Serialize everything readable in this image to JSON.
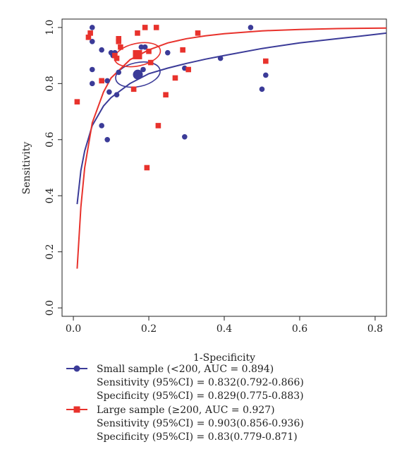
{
  "chart_data": {
    "type": "scatter",
    "xlabel": "1-Specificity",
    "ylabel": "Sensitivity",
    "xlim": [
      -0.03,
      0.83
    ],
    "ylim": [
      -0.03,
      1.03
    ],
    "x_ticks": [
      "0.0",
      "0.2",
      "0.4",
      "0.6",
      "0.8"
    ],
    "y_ticks": [
      "0.0",
      "0.2",
      "0.4",
      "0.6",
      "0.8",
      "1.0"
    ],
    "x_tick_values": [
      0,
      0.2,
      0.4,
      0.6,
      0.8
    ],
    "y_tick_values": [
      0,
      0.2,
      0.4,
      0.6,
      0.8,
      1.0
    ],
    "colors": {
      "small": "#3b3b98",
      "large": "#e8322c"
    },
    "series": [
      {
        "name": "Small sample (<200, AUC = 0.894)",
        "marker": "circle",
        "sensitivity_ci": "Sensitivity (95%CI) = 0.832(0.792-0.866)",
        "specificity_ci": "Specificity (95%CI) = 0.829(0.775-0.883)",
        "summary_point": [
          0.171,
          0.832
        ],
        "curve": [
          [
            0.01,
            0.37
          ],
          [
            0.02,
            0.49
          ],
          [
            0.03,
            0.56
          ],
          [
            0.05,
            0.65
          ],
          [
            0.08,
            0.72
          ],
          [
            0.1,
            0.75
          ],
          [
            0.15,
            0.8
          ],
          [
            0.2,
            0.835
          ],
          [
            0.25,
            0.855
          ],
          [
            0.3,
            0.872
          ],
          [
            0.35,
            0.887
          ],
          [
            0.4,
            0.9
          ],
          [
            0.5,
            0.925
          ],
          [
            0.6,
            0.945
          ],
          [
            0.7,
            0.96
          ],
          [
            0.8,
            0.975
          ],
          [
            0.83,
            0.98
          ]
        ],
        "points": [
          [
            0.05,
            1.0
          ],
          [
            0.05,
            0.95
          ],
          [
            0.05,
            0.85
          ],
          [
            0.05,
            0.8
          ],
          [
            0.075,
            0.92
          ],
          [
            0.075,
            0.65
          ],
          [
            0.09,
            0.81
          ],
          [
            0.09,
            0.6
          ],
          [
            0.095,
            0.77
          ],
          [
            0.1,
            0.91
          ],
          [
            0.105,
            0.9
          ],
          [
            0.11,
            0.91
          ],
          [
            0.115,
            0.76
          ],
          [
            0.12,
            0.84
          ],
          [
            0.18,
            0.93
          ],
          [
            0.185,
            0.85
          ],
          [
            0.19,
            0.93
          ],
          [
            0.25,
            0.91
          ],
          [
            0.295,
            0.855
          ],
          [
            0.295,
            0.61
          ],
          [
            0.39,
            0.89
          ],
          [
            0.47,
            1.0
          ],
          [
            0.5,
            0.78
          ],
          [
            0.51,
            0.83
          ]
        ]
      },
      {
        "name": "Large sample (≥200, AUC = 0.927)",
        "marker": "square",
        "sensitivity_ci": "Sensitivity (95%CI) = 0.903(0.856-0.936)",
        "specificity_ci": "Specificity (95%CI) = 0.83(0.779-0.871)",
        "summary_point": [
          0.17,
          0.903
        ],
        "curve": [
          [
            0.01,
            0.14
          ],
          [
            0.02,
            0.36
          ],
          [
            0.03,
            0.5
          ],
          [
            0.05,
            0.66
          ],
          [
            0.08,
            0.77
          ],
          [
            0.1,
            0.82
          ],
          [
            0.15,
            0.885
          ],
          [
            0.2,
            0.92
          ],
          [
            0.25,
            0.945
          ],
          [
            0.3,
            0.96
          ],
          [
            0.35,
            0.97
          ],
          [
            0.4,
            0.978
          ],
          [
            0.5,
            0.988
          ],
          [
            0.6,
            0.993
          ],
          [
            0.7,
            0.996
          ],
          [
            0.83,
            0.998
          ]
        ],
        "points": [
          [
            0.01,
            0.735
          ],
          [
            0.04,
            0.965
          ],
          [
            0.045,
            0.98
          ],
          [
            0.075,
            0.81
          ],
          [
            0.11,
            0.9
          ],
          [
            0.115,
            0.89
          ],
          [
            0.12,
            0.96
          ],
          [
            0.12,
            0.95
          ],
          [
            0.125,
            0.93
          ],
          [
            0.16,
            0.78
          ],
          [
            0.17,
            0.98
          ],
          [
            0.19,
            1.0
          ],
          [
            0.195,
            0.5
          ],
          [
            0.2,
            0.915
          ],
          [
            0.205,
            0.875
          ],
          [
            0.22,
            1.0
          ],
          [
            0.225,
            0.65
          ],
          [
            0.245,
            0.76
          ],
          [
            0.27,
            0.82
          ],
          [
            0.29,
            0.92
          ],
          [
            0.305,
            0.85
          ],
          [
            0.33,
            0.98
          ],
          [
            0.51,
            0.88
          ]
        ]
      }
    ]
  }
}
